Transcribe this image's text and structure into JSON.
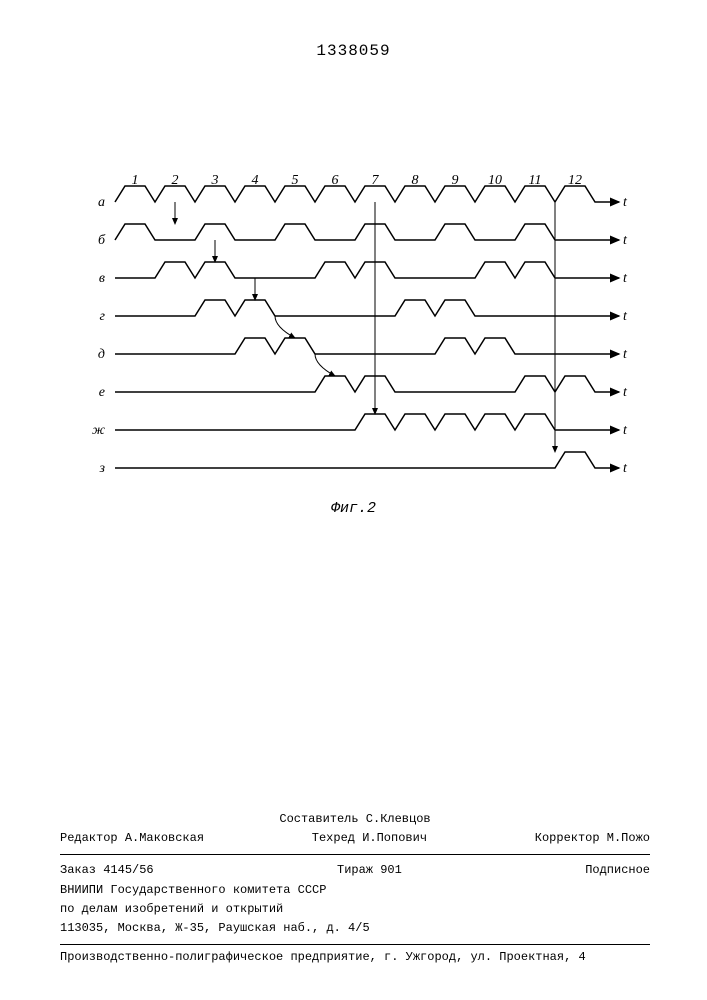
{
  "patent_number": "1338059",
  "figure": {
    "caption": "Фиг.2",
    "col_labels": [
      "1",
      "2",
      "3",
      "4",
      "5",
      "6",
      "7",
      "8",
      "9",
      "10",
      "11",
      "12"
    ],
    "row_labels": [
      "а",
      "б",
      "в",
      "г",
      "д",
      "е",
      "ж",
      "з"
    ],
    "axis_label": "t",
    "row_spacing": 38,
    "col_spacing": 40,
    "pulse_top_width": 20,
    "pulse_height": 16,
    "line_color": "#000000",
    "line_width": 1.5,
    "active_cells": {
      "а": [
        1,
        1,
        1,
        1,
        1,
        1,
        1,
        1,
        1,
        1,
        1,
        1
      ],
      "б": [
        1,
        0,
        1,
        0,
        1,
        0,
        1,
        0,
        1,
        0,
        1,
        0
      ],
      "в": [
        0,
        1,
        1,
        0,
        0,
        1,
        1,
        0,
        0,
        1,
        1,
        0
      ],
      "г": [
        0,
        0,
        1,
        1,
        0,
        0,
        0,
        1,
        1,
        0,
        0,
        0
      ],
      "д": [
        0,
        0,
        0,
        1,
        1,
        0,
        0,
        0,
        1,
        1,
        0,
        0
      ],
      "е": [
        0,
        0,
        0,
        0,
        0,
        1,
        1,
        0,
        0,
        0,
        1,
        1
      ],
      "ж": [
        0,
        0,
        0,
        0,
        0,
        0,
        1,
        1,
        1,
        1,
        1,
        0
      ],
      "з": [
        0,
        0,
        0,
        0,
        0,
        0,
        0,
        0,
        0,
        0,
        0,
        1
      ]
    },
    "arrows": [
      {
        "from_row": "а",
        "from_col": 2,
        "to_row": "б",
        "to_col": 2
      },
      {
        "from_row": "б",
        "from_col": 3,
        "to_row": "в",
        "to_col": 3
      },
      {
        "from_row": "в",
        "from_col": 4,
        "to_row": "г",
        "to_col": 4
      },
      {
        "from_row": "г",
        "from_col": 4.5,
        "to_row": "д",
        "to_col": 5
      },
      {
        "from_row": "д",
        "from_col": 5.5,
        "to_row": "е",
        "to_col": 6
      },
      {
        "from_row": "а",
        "from_col": 7,
        "to_row": "ж",
        "to_col": 7
      },
      {
        "from_row": "а",
        "from_col": 11.5,
        "to_row": "з",
        "to_col": 11.5
      }
    ]
  },
  "footer": {
    "compiler_label": "Составитель",
    "compiler_name": "С.Клевцов",
    "editor_label": "Редактор",
    "editor_name": "А.Маковская",
    "techred_label": "Техред",
    "techred_name": "И.Попович",
    "corrector_label": "Корректор",
    "corrector_name": "М.Пожо",
    "order_label": "Заказ",
    "order_value": "4145/56",
    "tirage_label": "Тираж",
    "tirage_value": "901",
    "signed_label": "Подписное",
    "org1": "ВНИИПИ Государственного комитета СССР",
    "org2": "по делам изобретений и открытий",
    "address": "113035, Москва, Ж-35, Раушская наб., д. 4/5",
    "printer": "Производственно-полиграфическое предприятие, г. Ужгород, ул. Проектная, 4"
  }
}
